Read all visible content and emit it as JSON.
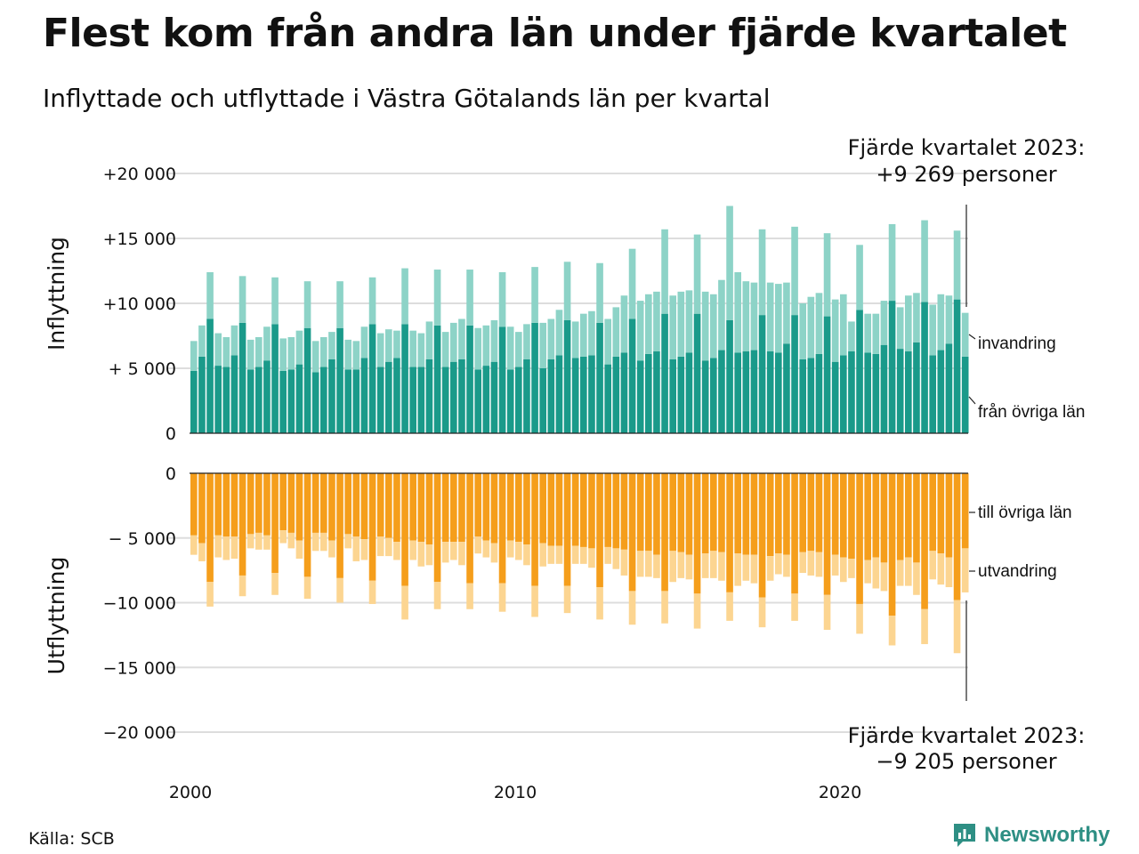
{
  "header": {
    "title": "Flest kom från andra län under fjärde kvartalet",
    "subtitle": "Inflyttade och utflyttade i Västra Götalands län per kvartal"
  },
  "footer": {
    "source": "Källa: SCB",
    "brand": "Newsworthy"
  },
  "colors": {
    "in_domestic": "#1a9a8a",
    "in_immigration": "#8dd3c7",
    "out_domestic": "#f59e1b",
    "out_emigration": "#fcd591",
    "grid": "#dddddd",
    "brand": "#2e8f84"
  },
  "chart_data": [
    {
      "type": "bar",
      "stacked": true,
      "ylabel": "Inflyttning",
      "ylim": [
        0,
        20000
      ],
      "yticks": [
        0,
        5000,
        10000,
        15000,
        20000
      ],
      "ytick_labels": [
        "0",
        "+ 5 000",
        "+10 000",
        "+15 000",
        "+20 000"
      ],
      "x_start": 2000,
      "x_step": "quarter",
      "series": [
        {
          "name": "från övriga län",
          "values": [
            4800,
            5900,
            8800,
            5200,
            5100,
            6000,
            8500,
            4900,
            5100,
            5600,
            8400,
            4800,
            4900,
            5300,
            8100,
            4700,
            5100,
            5700,
            8100,
            4900,
            4900,
            5800,
            8400,
            5100,
            5500,
            5800,
            8400,
            5100,
            5100,
            5700,
            8300,
            5100,
            5500,
            5700,
            8300,
            4900,
            5200,
            5500,
            8200,
            4900,
            5100,
            5700,
            8500,
            5000,
            5700,
            6000,
            8700,
            5800,
            5900,
            6000,
            8500,
            5300,
            5900,
            6200,
            8800,
            5600,
            6100,
            6300,
            9200,
            5700,
            5900,
            6200,
            9200,
            5600,
            5800,
            6400,
            8700,
            6200,
            6300,
            6400,
            9100,
            6300,
            6200,
            6900,
            9100,
            5700,
            5800,
            6100,
            9000,
            5500,
            6000,
            6300,
            9500,
            6200,
            6100,
            6800,
            10200,
            6500,
            6300,
            7000,
            10100,
            6000,
            6400,
            6900,
            10300,
            5900
          ]
        },
        {
          "name": "invandring",
          "values": [
            2300,
            2400,
            3600,
            2500,
            2300,
            2300,
            3600,
            2300,
            2300,
            2600,
            3600,
            2500,
            2500,
            2600,
            3600,
            2400,
            2300,
            2100,
            3600,
            2300,
            2200,
            2400,
            3600,
            2600,
            2500,
            2100,
            4300,
            2800,
            2600,
            2900,
            4300,
            2700,
            3000,
            3100,
            4300,
            3200,
            3100,
            3200,
            4200,
            3300,
            2700,
            2700,
            4300,
            3500,
            3100,
            3500,
            4500,
            2800,
            3300,
            3400,
            4600,
            3500,
            3800,
            4400,
            5400,
            4600,
            4600,
            4600,
            6500,
            4900,
            5000,
            4800,
            6100,
            5300,
            4900,
            5400,
            8800,
            6200,
            5400,
            5200,
            6600,
            5300,
            5300,
            4700,
            6800,
            4300,
            4700,
            4700,
            6400,
            4800,
            4700,
            2300,
            5000,
            3000,
            3100,
            3400,
            5900,
            3200,
            4300,
            3800,
            6300,
            3900,
            4300,
            3700,
            5300,
            3369
          ]
        }
      ],
      "annotation": {
        "line1": "Fjärde kvartalet 2023:",
        "line2": "+9 269 personer"
      }
    },
    {
      "type": "bar",
      "stacked": true,
      "ylabel": "Utflyttning",
      "ylim": [
        -20000,
        0
      ],
      "yticks": [
        0,
        -5000,
        -10000,
        -15000,
        -20000
      ],
      "ytick_labels": [
        "0",
        "− 5 000",
        "−10 000",
        "−15 000",
        "−20 000"
      ],
      "x_start": 2000,
      "x_step": "quarter",
      "series": [
        {
          "name": "till övriga län",
          "values": [
            -4800,
            -5400,
            -8400,
            -4800,
            -4900,
            -4900,
            -7900,
            -4700,
            -4600,
            -4800,
            -7700,
            -4400,
            -4600,
            -5200,
            -8000,
            -4600,
            -4600,
            -5200,
            -8100,
            -4700,
            -4900,
            -5100,
            -8300,
            -4900,
            -5000,
            -5300,
            -8700,
            -5200,
            -5300,
            -5500,
            -8400,
            -5300,
            -5300,
            -5300,
            -8500,
            -4900,
            -5200,
            -5400,
            -8500,
            -5200,
            -5300,
            -5500,
            -8700,
            -5400,
            -5600,
            -5600,
            -8700,
            -5600,
            -5700,
            -5800,
            -8800,
            -5700,
            -5800,
            -5900,
            -9100,
            -6000,
            -6000,
            -6300,
            -9100,
            -6000,
            -6100,
            -6300,
            -9300,
            -6200,
            -6000,
            -6100,
            -9200,
            -6200,
            -6300,
            -6300,
            -9600,
            -6400,
            -6200,
            -6300,
            -9300,
            -6100,
            -6000,
            -6100,
            -9400,
            -6300,
            -6500,
            -6600,
            -10100,
            -6700,
            -6500,
            -6900,
            -11000,
            -6700,
            -6500,
            -6900,
            -10500,
            -6000,
            -6200,
            -6500,
            -9800,
            -5800
          ]
        },
        {
          "name": "utvandring",
          "values": [
            -1500,
            -1400,
            -1900,
            -1700,
            -1800,
            -1700,
            -1600,
            -1100,
            -1300,
            -1100,
            -1700,
            -1000,
            -1200,
            -1400,
            -1700,
            -1400,
            -1400,
            -1300,
            -1900,
            -1100,
            -1900,
            -1600,
            -1800,
            -1500,
            -1400,
            -1400,
            -2600,
            -1500,
            -1900,
            -1600,
            -2100,
            -1600,
            -1400,
            -1800,
            -2000,
            -1300,
            -1300,
            -1500,
            -2200,
            -1300,
            -1400,
            -1600,
            -2400,
            -1800,
            -1400,
            -1400,
            -2100,
            -1400,
            -1300,
            -1500,
            -2500,
            -1300,
            -1600,
            -2000,
            -2600,
            -2000,
            -2000,
            -1800,
            -2500,
            -2400,
            -2000,
            -1900,
            -2700,
            -1900,
            -2100,
            -2200,
            -2200,
            -2500,
            -2000,
            -2200,
            -2300,
            -1900,
            -1600,
            -1700,
            -2100,
            -1600,
            -1900,
            -1900,
            -2700,
            -1600,
            -1900,
            -1500,
            -2300,
            -1800,
            -2400,
            -2200,
            -2300,
            -2000,
            -2200,
            -2500,
            -2700,
            -2200,
            -2400,
            -2300,
            -4100,
            -3405
          ]
        }
      ],
      "annotation": {
        "line1": "Fjärde kvartalet 2023:",
        "line2": "−9 205 personer"
      }
    }
  ],
  "x_axis": {
    "tick_labels": [
      "2000",
      "2010",
      "2020"
    ],
    "tick_years": [
      2000,
      2010,
      2020
    ]
  }
}
